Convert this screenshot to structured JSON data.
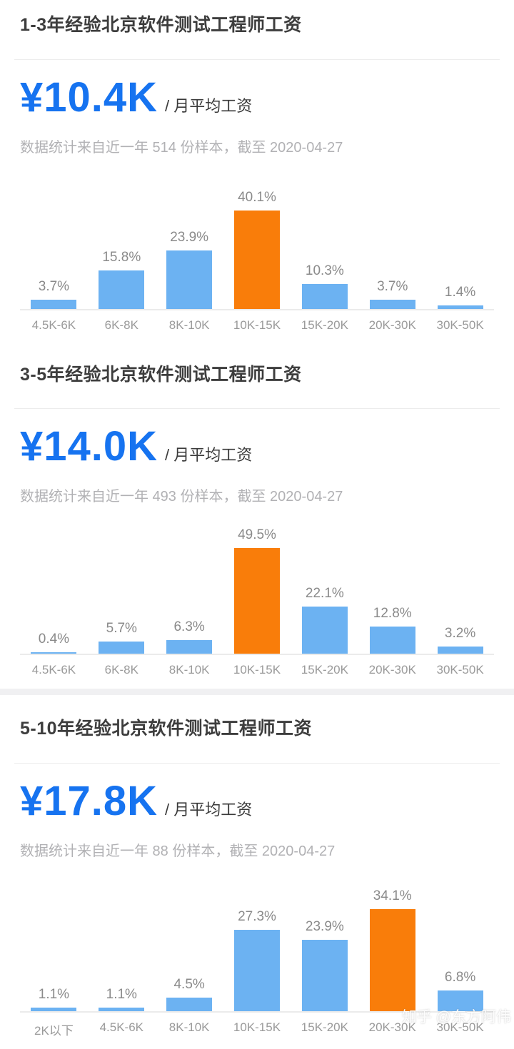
{
  "colors": {
    "accent_blue": "#1673f0",
    "bar_blue": "#6cb2f2",
    "bar_orange": "#f97d0a",
    "divider": "#ececec",
    "section_band": "#f0f0f2"
  },
  "watermark": "知乎 @东方阿伟",
  "sections": [
    {
      "title": "1-3年经验北京软件测试工程师工资",
      "salary": "¥10.4K",
      "salary_suffix": "/ 月平均工资",
      "subtitle": "数据统计来自近一年 514 份样本，截至 2020-04-27"
    },
    {
      "title": "3-5年经验北京软件测试工程师工资",
      "salary": "¥14.0K",
      "salary_suffix": "/ 月平均工资",
      "subtitle": "数据统计来自近一年 493 份样本，截至 2020-04-27"
    },
    {
      "title": "5-10年经验北京软件测试工程师工资",
      "salary": "¥17.8K",
      "salary_suffix": "/ 月平均工资",
      "subtitle": "数据统计来自近一年 88 份样本，截至 2020-04-27"
    }
  ],
  "chart_data": [
    {
      "type": "bar",
      "title": "1-3年经验北京软件测试工程师工资",
      "categories": [
        "4.5K-6K",
        "6K-8K",
        "8K-10K",
        "10K-15K",
        "15K-20K",
        "20K-30K",
        "30K-50K"
      ],
      "values": [
        3.7,
        15.8,
        23.9,
        40.1,
        10.3,
        3.7,
        1.4
      ],
      "unit": "%",
      "highlight_index": 3,
      "bar_color": "#6cb2f2",
      "highlight_color": "#f97d0a",
      "xlabel": "",
      "ylabel": "",
      "grid": false,
      "legend": false
    },
    {
      "type": "bar",
      "title": "3-5年经验北京软件测试工程师工资",
      "categories": [
        "4.5K-6K",
        "6K-8K",
        "8K-10K",
        "10K-15K",
        "15K-20K",
        "20K-30K",
        "30K-50K"
      ],
      "values": [
        0.4,
        5.7,
        6.3,
        49.5,
        22.1,
        12.8,
        3.2
      ],
      "unit": "%",
      "highlight_index": 3,
      "bar_color": "#6cb2f2",
      "highlight_color": "#f97d0a",
      "xlabel": "",
      "ylabel": "",
      "grid": false,
      "legend": false
    },
    {
      "type": "bar",
      "title": "5-10年经验北京软件测试工程师工资",
      "categories": [
        "2K以下",
        "4.5K-6K",
        "8K-10K",
        "10K-15K",
        "15K-20K",
        "20K-30K",
        "30K-50K"
      ],
      "values": [
        1.1,
        1.1,
        4.5,
        27.3,
        23.9,
        34.1,
        6.8
      ],
      "unit": "%",
      "highlight_index": 5,
      "bar_color": "#6cb2f2",
      "highlight_color": "#f97d0a",
      "xlabel": "",
      "ylabel": "",
      "grid": false,
      "legend": false
    }
  ]
}
